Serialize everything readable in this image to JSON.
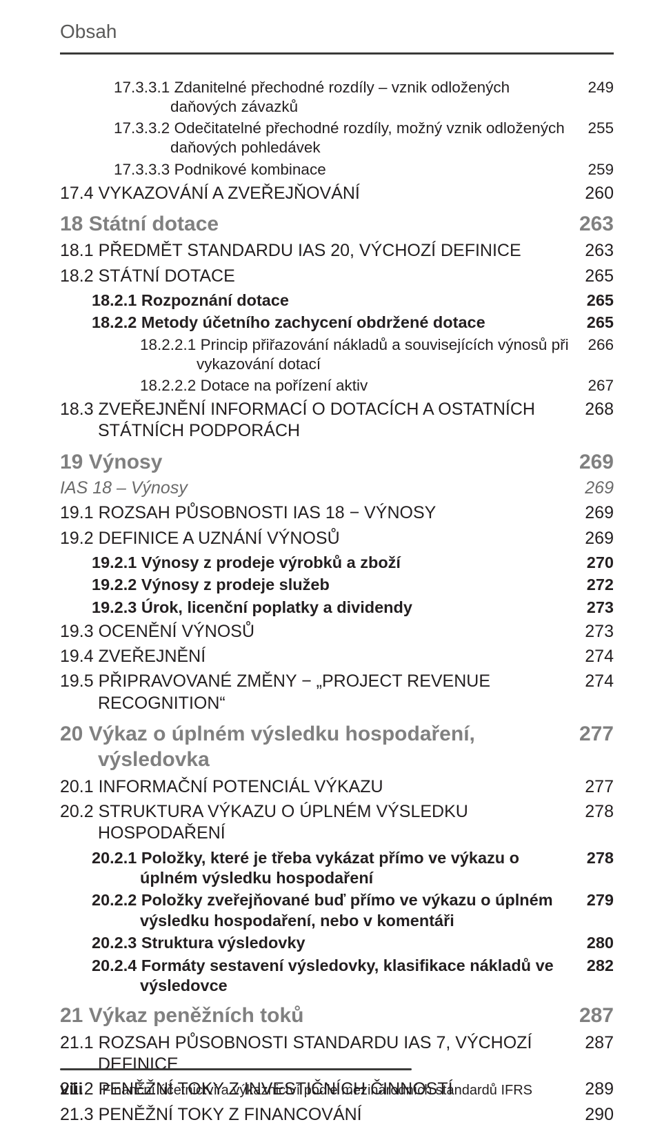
{
  "header": {
    "title": "Obsah"
  },
  "colors": {
    "text": "#231f20",
    "muted": "#808080",
    "rule": "#3a3a39",
    "bg": "#ffffff"
  },
  "toc": [
    {
      "cls": "lvl3",
      "num": "17.3.3.1",
      "text": "Zdanitelné přechodné rozdíly – vznik odložených daňových závazků",
      "page": "249"
    },
    {
      "cls": "lvl3",
      "num": "17.3.3.2",
      "text": "Odečitatelné přechodné rozdíly, možný vznik odložených daňových pohledávek",
      "page": "255"
    },
    {
      "cls": "lvl3",
      "num": "17.3.3.3",
      "text": "Podnikové kombinace",
      "page": "259"
    },
    {
      "cls": "lvl1",
      "num": "17.4",
      "text": "VYKAZOVÁNÍ A ZVEŘEJŇOVÁNÍ",
      "page": "260"
    },
    {
      "cls": "chap",
      "num": "18",
      "text": "Státní dotace",
      "page": "263"
    },
    {
      "cls": "lvl1",
      "num": "18.1",
      "text": "PŘEDMĚT STANDARDU IAS 20, VÝCHOZÍ DEFINICE",
      "page": "263"
    },
    {
      "cls": "lvl1",
      "num": "18.2",
      "text": "STÁTNÍ DOTACE",
      "page": "265"
    },
    {
      "cls": "lvl2",
      "num": "18.2.1",
      "text": "Rozpoznání dotace",
      "page": "265"
    },
    {
      "cls": "lvl2",
      "num": "18.2.2",
      "text": "Metody účetního zachycení obdržené dotace",
      "page": "265"
    },
    {
      "cls": "lvl3b",
      "num": "18.2.2.1",
      "text": "Princip přiřazování nákladů a souvisejících výnosů při vykazování dotací",
      "page": "266"
    },
    {
      "cls": "lvl3b",
      "num": "18.2.2.2",
      "text": "Dotace na pořízení aktiv",
      "page": "267"
    },
    {
      "cls": "lvl1",
      "num": "18.3",
      "text": "ZVEŘEJNĚNÍ INFORMACÍ O DOTACÍCH A OSTATNÍCH STÁTNÍCH PODPORÁCH",
      "page": "268"
    },
    {
      "cls": "chap",
      "num": "19",
      "text": "Výnosy",
      "page": "269"
    },
    {
      "cls": "ital",
      "num": "",
      "text": "IAS 18 – Výnosy",
      "page": "269"
    },
    {
      "cls": "lvl1",
      "num": "19.1",
      "text": "ROZSAH PŮSOBNOSTI IAS 18 − VÝNOSY",
      "page": "269"
    },
    {
      "cls": "lvl1",
      "num": "19.2",
      "text": "DEFINICE A UZNÁNÍ VÝNOSŮ",
      "page": "269"
    },
    {
      "cls": "lvl2",
      "num": "19.2.1",
      "text": "Výnosy z prodeje výrobků a zboží",
      "page": "270"
    },
    {
      "cls": "lvl2",
      "num": "19.2.2",
      "text": "Výnosy z prodeje služeb",
      "page": "272"
    },
    {
      "cls": "lvl2",
      "num": "19.2.3",
      "text": "Úrok, licenční poplatky a dividendy",
      "page": "273"
    },
    {
      "cls": "lvl1",
      "num": "19.3",
      "text": "OCENĚNÍ VÝNOSŮ",
      "page": "273"
    },
    {
      "cls": "lvl1",
      "num": "19.4",
      "text": "ZVEŘEJNĚNÍ",
      "page": "274"
    },
    {
      "cls": "lvl1",
      "num": "19.5",
      "text": "PŘIPRAVOVANÉ ZMĚNY − „PROJECT REVENUE RECOGNITION“",
      "page": "274"
    },
    {
      "cls": "chap",
      "num": "20",
      "text": "Výkaz o úplném výsledku hospodaření, výsledovka",
      "page": "277"
    },
    {
      "cls": "lvl1",
      "num": "20.1",
      "text": "INFORMAČNÍ POTENCIÁL VÝKAZU",
      "page": "277"
    },
    {
      "cls": "lvl1",
      "num": "20.2",
      "text": "STRUKTURA VÝKAZU O ÚPLNÉM VÝSLEDKU HOSPODAŘENÍ",
      "page": "278"
    },
    {
      "cls": "lvl2",
      "num": "20.2.1",
      "text": "Položky, které je třeba vykázat přímo ve výkazu o úplném výsledku hospodaření",
      "page": "278"
    },
    {
      "cls": "lvl2",
      "num": "20.2.2",
      "text": "Položky zveřejňované buď přímo ve výkazu o úplném výsledku hospodaření, nebo v komentáři",
      "page": "279"
    },
    {
      "cls": "lvl2",
      "num": "20.2.3",
      "text": "Struktura výsledovky",
      "page": "280"
    },
    {
      "cls": "lvl2",
      "num": "20.2.4",
      "text": "Formáty sestavení výsledovky, klasifikace nákladů ve výsledovce",
      "page": "282"
    },
    {
      "cls": "chap",
      "num": "21",
      "text": "Výkaz peněžních toků",
      "page": "287"
    },
    {
      "cls": "lvl1",
      "num": "21.1",
      "text": "ROZSAH PŮSOBNOSTI STANDARDU IAS 7, VÝCHOZÍ DEFINICE",
      "page": "287"
    },
    {
      "cls": "lvl1",
      "num": "21.2",
      "text": "PENĚŽNÍ TOKY Z INVESTIČNÍCH ČINNOSTÍ",
      "page": "289"
    },
    {
      "cls": "lvl1",
      "num": "21.3",
      "text": "PENĚŽNÍ TOKY Z FINANCOVÁNÍ",
      "page": "290"
    }
  ],
  "footer": {
    "page_num": "viii",
    "text": "Finanční účetnictví a výkaznictví podle mezinárodních standardů IFRS"
  }
}
